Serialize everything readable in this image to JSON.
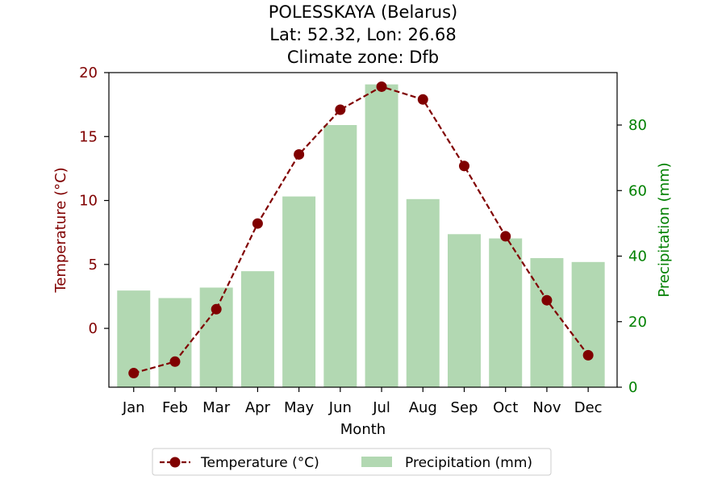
{
  "chart_data": {
    "type": "bar+line",
    "title_lines": [
      "POLESSKAYA (Belarus)",
      "Lat: 52.32, Lon: 26.68",
      "Climate zone: Dfb"
    ],
    "xlabel": "Month",
    "categories": [
      "Jan",
      "Feb",
      "Mar",
      "Apr",
      "May",
      "Jun",
      "Jul",
      "Aug",
      "Sep",
      "Oct",
      "Nov",
      "Dec"
    ],
    "temperature": {
      "name": "Temperature (°C)",
      "axis_label": "Temperature (°C)",
      "color": "#800000",
      "values": [
        -3.5,
        -2.6,
        1.5,
        8.2,
        13.6,
        17.1,
        18.9,
        17.9,
        12.7,
        7.2,
        2.2,
        -2.1
      ],
      "ylim": [
        -4.6,
        20
      ],
      "ticks": [
        0,
        5,
        10,
        15,
        20
      ]
    },
    "precipitation": {
      "name": "Precipitation (mm)",
      "axis_label": "Precipitation (mm)",
      "color": "#008000",
      "bar_color": "#b2d8b2",
      "values": [
        29.5,
        27.2,
        30.4,
        35.4,
        58.2,
        80.0,
        92.4,
        57.4,
        46.7,
        45.4,
        39.4,
        38.2
      ],
      "ylim": [
        0,
        96
      ],
      "ticks": [
        0,
        20,
        40,
        60,
        80
      ]
    },
    "legend_placement": "bottom-center",
    "grid": false
  }
}
